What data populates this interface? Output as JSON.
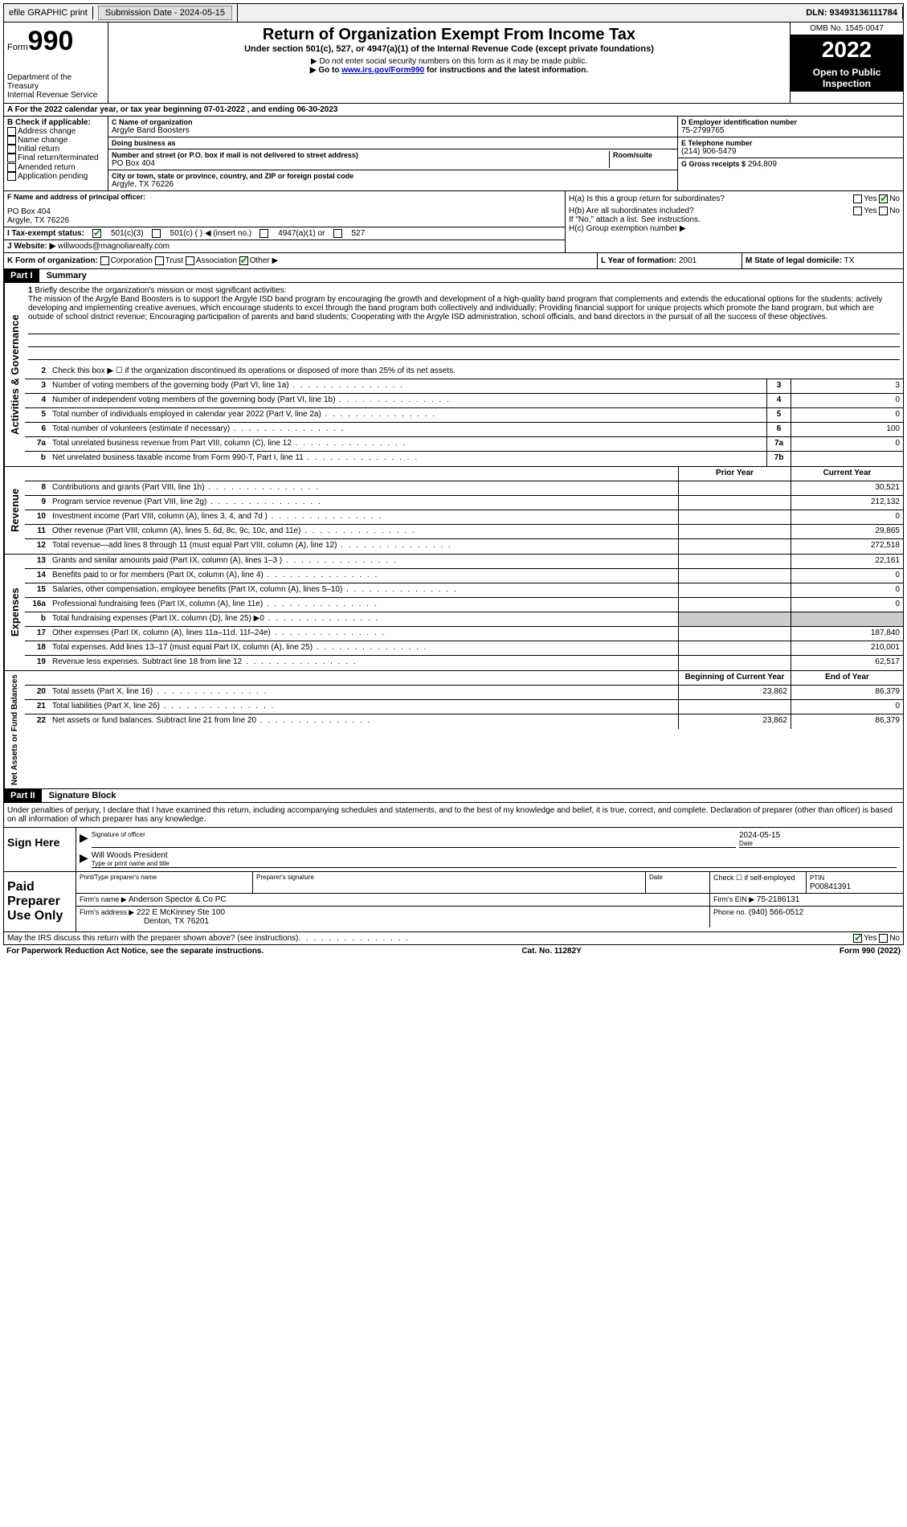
{
  "topbar": {
    "efile": "efile GRAPHIC print",
    "submission_label": "Submission Date - 2024-05-15",
    "dln": "DLN: 93493136111784"
  },
  "header": {
    "form_word": "Form",
    "form_no": "990",
    "dept": "Department of the Treasury",
    "irs": "Internal Revenue Service",
    "title": "Return of Organization Exempt From Income Tax",
    "subtitle": "Under section 501(c), 527, or 4947(a)(1) of the Internal Revenue Code (except private foundations)",
    "note1": "▶ Do not enter social security numbers on this form as it may be made public.",
    "note2_pre": "▶ Go to ",
    "note2_link": "www.irs.gov/Form990",
    "note2_post": " for instructions and the latest information.",
    "omb": "OMB No. 1545-0047",
    "year": "2022",
    "open": "Open to Public Inspection"
  },
  "section_a": "A For the 2022 calendar year, or tax year beginning 07-01-2022   , and ending 06-30-2023",
  "section_b": {
    "label": "B Check if applicable:",
    "items": [
      "Address change",
      "Name change",
      "Initial return",
      "Final return/terminated",
      "Amended return",
      "Application pending"
    ]
  },
  "section_c": {
    "name_label": "C Name of organization",
    "name": "Argyle Band Boosters",
    "dba_label": "Doing business as",
    "dba": "",
    "addr_label": "Number and street (or P.O. box if mail is not delivered to street address)",
    "addr": "PO Box 404",
    "room_label": "Room/suite",
    "city_label": "City or town, state or province, country, and ZIP or foreign postal code",
    "city": "Argyle, TX  76226"
  },
  "section_d": {
    "label": "D Employer identification number",
    "value": "75-2799765"
  },
  "section_e": {
    "label": "E Telephone number",
    "value": "(214) 906-5479"
  },
  "section_g": {
    "label": "G Gross receipts $",
    "value": "294,809"
  },
  "section_f": {
    "label": "F  Name and address of principal officer:",
    "line1": "PO Box 404",
    "line2": "Argyle, TX  76226"
  },
  "section_h": {
    "ha": "H(a)  Is this a group return for subordinates?",
    "hb": "H(b)  Are all subordinates included?",
    "hb_note": "If \"No,\" attach a list. See instructions.",
    "hc": "H(c)  Group exemption number ▶",
    "yes": "Yes",
    "no": "No"
  },
  "section_i": {
    "label": "I  Tax-exempt status:",
    "opt1": "501(c)(3)",
    "opt2": "501(c) (  ) ◀ (insert no.)",
    "opt3": "4947(a)(1) or",
    "opt4": "527"
  },
  "section_j": {
    "label": "J  Website: ▶",
    "value": "willwoods@magnoliarealty.com"
  },
  "section_k": "K Form of organization:",
  "k_opts": [
    "Corporation",
    "Trust",
    "Association",
    "Other ▶"
  ],
  "section_l": {
    "label": "L Year of formation:",
    "value": "2001"
  },
  "section_m": {
    "label": "M State of legal domicile:",
    "value": "TX"
  },
  "part1": {
    "header": "Part I",
    "title": "Summary",
    "line1_label": "Briefly describe the organization's mission or most significant activities:",
    "mission": "The mission of the Argyle Band Boosters is to support the Argyle ISD band program by encouraging the growth and development of a high-quality band program that complements and extends the educational options for the students; actively developing and implementing creative avenues, which encourage students to excel through the band program both collectively and individually; Providing financial support for unique projects which promote the band program, but which are outside of school district revenue; Encouraging participation of parents and band students; Cooperating with the Argyle ISD administration, school officials, and band directors in the pursuit of all the success of these objectives.",
    "line2": "Check this box ▶ ☐ if the organization discontinued its operations or disposed of more than 25% of its net assets.",
    "sides": {
      "ag": "Activities & Governance",
      "rev": "Revenue",
      "exp": "Expenses",
      "nab": "Net Assets or Fund Balances"
    },
    "rows_ag": [
      {
        "n": "3",
        "t": "Number of voting members of the governing body (Part VI, line 1a)",
        "b": "3",
        "v": "3"
      },
      {
        "n": "4",
        "t": "Number of independent voting members of the governing body (Part VI, line 1b)",
        "b": "4",
        "v": "0"
      },
      {
        "n": "5",
        "t": "Total number of individuals employed in calendar year 2022 (Part V, line 2a)",
        "b": "5",
        "v": "0"
      },
      {
        "n": "6",
        "t": "Total number of volunteers (estimate if necessary)",
        "b": "6",
        "v": "100"
      },
      {
        "n": "7a",
        "t": "Total unrelated business revenue from Part VIII, column (C), line 12",
        "b": "7a",
        "v": "0"
      },
      {
        "n": "b",
        "t": "Net unrelated business taxable income from Form 990-T, Part I, line 11",
        "b": "7b",
        "v": ""
      }
    ],
    "col_prior": "Prior Year",
    "col_current": "Current Year",
    "rows_rev": [
      {
        "n": "8",
        "t": "Contributions and grants (Part VIII, line 1h)",
        "p": "",
        "c": "30,521"
      },
      {
        "n": "9",
        "t": "Program service revenue (Part VIII, line 2g)",
        "p": "",
        "c": "212,132"
      },
      {
        "n": "10",
        "t": "Investment income (Part VIII, column (A), lines 3, 4, and 7d )",
        "p": "",
        "c": "0"
      },
      {
        "n": "11",
        "t": "Other revenue (Part VIII, column (A), lines 5, 6d, 8c, 9c, 10c, and 11e)",
        "p": "",
        "c": "29,865"
      },
      {
        "n": "12",
        "t": "Total revenue—add lines 8 through 11 (must equal Part VIII, column (A), line 12)",
        "p": "",
        "c": "272,518"
      }
    ],
    "rows_exp": [
      {
        "n": "13",
        "t": "Grants and similar amounts paid (Part IX, column (A), lines 1–3 )",
        "p": "",
        "c": "22,161"
      },
      {
        "n": "14",
        "t": "Benefits paid to or for members (Part IX, column (A), line 4)",
        "p": "",
        "c": "0"
      },
      {
        "n": "15",
        "t": "Salaries, other compensation, employee benefits (Part IX, column (A), lines 5–10)",
        "p": "",
        "c": "0"
      },
      {
        "n": "16a",
        "t": "Professional fundraising fees (Part IX, column (A), line 11e)",
        "p": "",
        "c": "0"
      },
      {
        "n": "b",
        "t": "Total fundraising expenses (Part IX, column (D), line 25) ▶0",
        "p": "shaded",
        "c": "shaded"
      },
      {
        "n": "17",
        "t": "Other expenses (Part IX, column (A), lines 11a–11d, 11f–24e)",
        "p": "",
        "c": "187,840"
      },
      {
        "n": "18",
        "t": "Total expenses. Add lines 13–17 (must equal Part IX, column (A), line 25)",
        "p": "",
        "c": "210,001"
      },
      {
        "n": "19",
        "t": "Revenue less expenses. Subtract line 18 from line 12",
        "p": "",
        "c": "62,517"
      }
    ],
    "col_begin": "Beginning of Current Year",
    "col_end": "End of Year",
    "rows_nab": [
      {
        "n": "20",
        "t": "Total assets (Part X, line 16)",
        "p": "23,862",
        "c": "86,379"
      },
      {
        "n": "21",
        "t": "Total liabilities (Part X, line 26)",
        "p": "",
        "c": "0"
      },
      {
        "n": "22",
        "t": "Net assets or fund balances. Subtract line 21 from line 20",
        "p": "23,862",
        "c": "86,379"
      }
    ]
  },
  "part2": {
    "header": "Part II",
    "title": "Signature Block",
    "penalty": "Under penalties of perjury, I declare that I have examined this return, including accompanying schedules and statements, and to the best of my knowledge and belief, it is true, correct, and complete. Declaration of preparer (other than officer) is based on all information of which preparer has any knowledge.",
    "sign_here": "Sign Here",
    "sig_officer": "Signature of officer",
    "sig_date": "2024-05-15",
    "date_label": "Date",
    "officer_name": "Will Woods  President",
    "type_label": "Type or print name and title",
    "paid": "Paid Preparer Use Only",
    "prep_name_label": "Print/Type preparer's name",
    "prep_sig_label": "Preparer's signature",
    "prep_date_label": "Date",
    "self_emp": "Check ☐ if self-employed",
    "ptin_label": "PTIN",
    "ptin": "P00841391",
    "firm_name_label": "Firm's name    ▶",
    "firm_name": "Anderson Spector & Co PC",
    "firm_ein_label": "Firm's EIN ▶",
    "firm_ein": "75-2186131",
    "firm_addr_label": "Firm's address ▶",
    "firm_addr1": "222 E McKinney Ste 100",
    "firm_addr2": "Denton, TX  76201",
    "phone_label": "Phone no.",
    "phone": "(940) 566-0512",
    "discuss": "May the IRS discuss this return with the preparer shown above? (see instructions)",
    "yes": "Yes",
    "no": "No"
  },
  "footer": {
    "left": "For Paperwork Reduction Act Notice, see the separate instructions.",
    "center": "Cat. No. 11282Y",
    "right": "Form 990 (2022)"
  }
}
